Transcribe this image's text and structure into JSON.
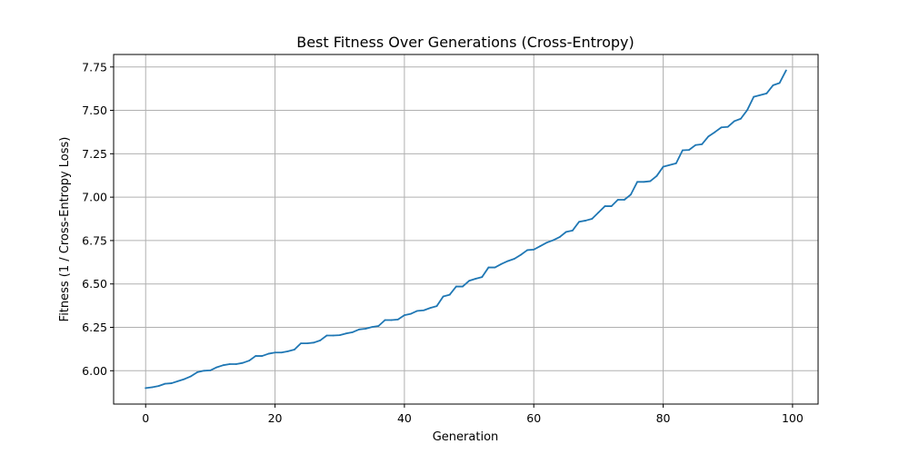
{
  "chart_data": {
    "type": "line",
    "title": "Best Fitness Over Generations (Cross-Entropy)",
    "xlabel": "Generation",
    "ylabel": "Fitness (1 / Cross-Entropy Loss)",
    "xlim": [
      -4.95,
      103.95
    ],
    "ylim": [
      5.808,
      7.822
    ],
    "xticks": [
      0,
      20,
      40,
      60,
      80,
      100
    ],
    "xtick_labels": [
      "0",
      "20",
      "40",
      "60",
      "80",
      "100"
    ],
    "yticks": [
      6.0,
      6.25,
      6.5,
      6.75,
      7.0,
      7.25,
      7.5,
      7.75
    ],
    "ytick_labels": [
      "6.00",
      "6.25",
      "6.50",
      "6.75",
      "7.00",
      "7.25",
      "7.50",
      "7.75"
    ],
    "grid": true,
    "series": [
      {
        "color": "#1f77b4",
        "x": [
          0,
          1,
          2,
          3,
          4,
          5,
          6,
          7,
          8,
          9,
          10,
          11,
          12,
          13,
          14,
          15,
          16,
          17,
          18,
          19,
          20,
          21,
          22,
          23,
          24,
          25,
          26,
          27,
          28,
          29,
          30,
          31,
          32,
          33,
          34,
          35,
          36,
          37,
          38,
          39,
          40,
          41,
          42,
          43,
          44,
          45,
          46,
          47,
          48,
          49,
          50,
          51,
          52,
          53,
          54,
          55,
          56,
          57,
          58,
          59,
          60,
          61,
          62,
          63,
          64,
          65,
          66,
          67,
          68,
          69,
          70,
          71,
          72,
          73,
          74,
          75,
          76,
          77,
          78,
          79,
          80,
          81,
          82,
          83,
          84,
          85,
          86,
          87,
          88,
          89,
          90,
          91,
          92,
          93,
          94,
          95,
          96,
          97,
          98,
          99
        ],
        "values": [
          5.9,
          5.905,
          5.912,
          5.925,
          5.928,
          5.94,
          5.952,
          5.968,
          5.992,
          6.0,
          6.002,
          6.02,
          6.032,
          6.038,
          6.038,
          6.045,
          6.058,
          6.085,
          6.085,
          6.098,
          6.105,
          6.105,
          6.112,
          6.122,
          6.158,
          6.158,
          6.162,
          6.175,
          6.203,
          6.203,
          6.205,
          6.215,
          6.222,
          6.238,
          6.242,
          6.252,
          6.258,
          6.292,
          6.292,
          6.295,
          6.32,
          6.328,
          6.345,
          6.348,
          6.362,
          6.372,
          6.428,
          6.438,
          6.485,
          6.485,
          6.518,
          6.53,
          6.54,
          6.595,
          6.595,
          6.615,
          6.632,
          6.645,
          6.668,
          6.695,
          6.698,
          6.718,
          6.738,
          6.752,
          6.77,
          6.8,
          6.808,
          6.858,
          6.865,
          6.875,
          6.912,
          6.948,
          6.948,
          6.985,
          6.985,
          7.015,
          7.088,
          7.088,
          7.092,
          7.122,
          7.175,
          7.185,
          7.195,
          7.27,
          7.272,
          7.3,
          7.305,
          7.35,
          7.375,
          7.402,
          7.405,
          7.438,
          7.452,
          7.502,
          7.578,
          7.588,
          7.598,
          7.645,
          7.658,
          7.73
        ]
      }
    ]
  }
}
